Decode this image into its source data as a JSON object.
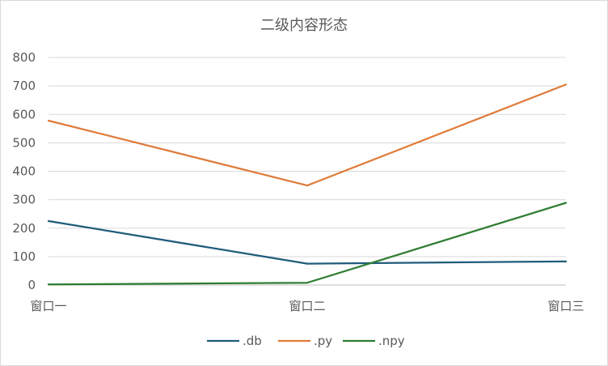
{
  "chart_data": {
    "type": "line",
    "title": "二级内容形态",
    "xlabel": "",
    "ylabel": "",
    "categories": [
      "窗口一",
      "窗口二",
      "窗口三"
    ],
    "ylim": [
      0,
      800
    ],
    "yticks": [
      0,
      100,
      200,
      300,
      400,
      500,
      600,
      700,
      800
    ],
    "grid": true,
    "legend_position": "bottom",
    "series": [
      {
        "name": ".db",
        "color": "#1f5c7a",
        "values": [
          225,
          75,
          83
        ]
      },
      {
        "name": ".py",
        "color": "#e07b39",
        "values": [
          578,
          350,
          705
        ]
      },
      {
        "name": ".npy",
        "color": "#2e7d32",
        "values": [
          2,
          8,
          289
        ]
      }
    ]
  }
}
